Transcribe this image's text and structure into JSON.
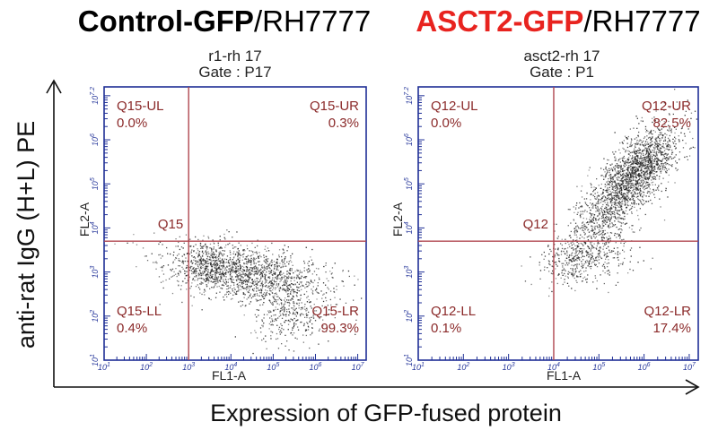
{
  "figure": {
    "y_axis_label": "anti-rat IgG (H+L) PE",
    "x_axis_label": "Expression of GFP-fused protein",
    "colors": {
      "highlight": "#e8231f",
      "frame": "#1f2f96",
      "gate": "#b0464f",
      "quadrant_text": "#8b2a2a",
      "events": "#222222"
    }
  },
  "chart_data": [
    {
      "type": "scatter",
      "title_bold": "Control-GFP",
      "title_rest": "/RH7777",
      "title_bold_color": "#000000",
      "sample": "r1-rh 17",
      "gate_text": "Gate : P17",
      "xlabel": "FL1-A",
      "ylabel": "FL2-A",
      "scale": "log",
      "xlim": [
        1,
        7.2
      ],
      "ylim": [
        1,
        7.2
      ],
      "x_ticks": [
        "10^1",
        "10^2",
        "10^3",
        "10^4",
        "10^5",
        "10^6",
        "10^7"
      ],
      "y_ticks": [
        "10^1",
        "10^2",
        "10^3",
        "10^4",
        "10^5",
        "10^6",
        "10^7.2"
      ],
      "gate_x": 3.0,
      "gate_y": 3.7,
      "gate_name": "Q15",
      "quadrants": {
        "UL": {
          "name": "Q15-UL",
          "percent": "0.0%"
        },
        "UR": {
          "name": "Q15-UR",
          "percent": "0.3%"
        },
        "LL": {
          "name": "Q15-LL",
          "percent": "0.4%"
        },
        "LR": {
          "name": "Q15-LR",
          "percent": "99.3%"
        }
      },
      "populations": [
        {
          "cx": 4.3,
          "cy": 3.0,
          "sx": 0.95,
          "sy": 0.32,
          "rot": -0.15,
          "n": 1500
        },
        {
          "cx": 3.4,
          "cy": 3.15,
          "sx": 0.25,
          "sy": 0.2,
          "rot": 0,
          "n": 220
        },
        {
          "cx": 5.4,
          "cy": 2.0,
          "sx": 0.45,
          "sy": 0.35,
          "rot": 0.3,
          "n": 300
        }
      ]
    },
    {
      "type": "scatter",
      "title_bold": "ASCT2-GFP",
      "title_rest": "/RH7777",
      "title_bold_color": "#e8231f",
      "sample": "asct2-rh 17",
      "gate_text": "Gate : P1",
      "xlabel": "FL1-A",
      "ylabel": "FL2-A",
      "scale": "log",
      "xlim": [
        1,
        7.2
      ],
      "ylim": [
        1,
        7.2
      ],
      "x_ticks": [
        "10^1",
        "10^2",
        "10^3",
        "10^4",
        "10^5",
        "10^6",
        "10^7"
      ],
      "y_ticks": [
        "10^1",
        "10^2",
        "10^3",
        "10^4",
        "10^5",
        "10^6",
        "10^7.2"
      ],
      "gate_x": 4.0,
      "gate_y": 3.7,
      "gate_name": "Q12",
      "quadrants": {
        "UL": {
          "name": "Q12-UL",
          "percent": "0.0%"
        },
        "UR": {
          "name": "Q12-UR",
          "percent": "82.5%"
        },
        "LL": {
          "name": "Q12-LL",
          "percent": "0.1%"
        },
        "LR": {
          "name": "Q12-LR",
          "percent": "17.4%"
        }
      },
      "populations": [
        {
          "cx": 5.55,
          "cy": 4.9,
          "sx": 0.85,
          "sy": 0.3,
          "rot": 0.92,
          "n": 1700
        },
        {
          "cx": 6.05,
          "cy": 5.5,
          "sx": 0.45,
          "sy": 0.25,
          "rot": 0.92,
          "n": 500
        },
        {
          "cx": 4.6,
          "cy": 3.3,
          "sx": 0.5,
          "sy": 0.28,
          "rot": 0.2,
          "n": 420
        }
      ]
    }
  ]
}
